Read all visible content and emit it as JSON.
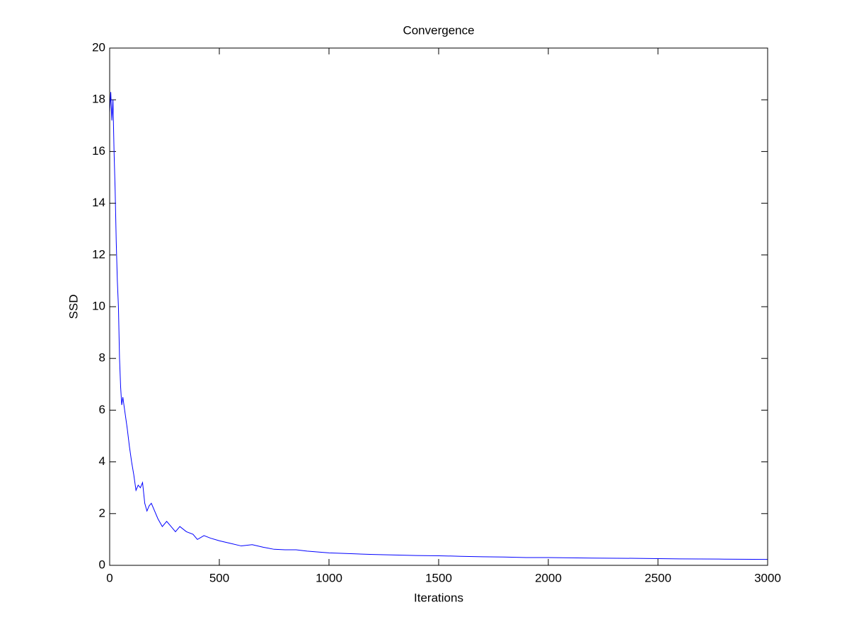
{
  "chart_data": {
    "type": "line",
    "title": "Convergence",
    "xlabel": "Iterations",
    "ylabel": "SSD",
    "x": [
      0,
      5,
      10,
      15,
      20,
      25,
      30,
      35,
      40,
      45,
      50,
      55,
      60,
      70,
      80,
      90,
      100,
      110,
      120,
      130,
      140,
      150,
      160,
      170,
      180,
      190,
      200,
      220,
      240,
      260,
      280,
      300,
      320,
      350,
      380,
      400,
      430,
      460,
      500,
      550,
      600,
      650,
      700,
      750,
      800,
      850,
      900,
      1000,
      1100,
      1200,
      1300,
      1400,
      1500,
      1600,
      1700,
      1800,
      1900,
      2000,
      2200,
      2400,
      2600,
      2800,
      3000
    ],
    "series": [
      {
        "name": "SSD",
        "color": "#0000ff",
        "values": [
          17.5,
          18.3,
          17.2,
          18.0,
          16.0,
          14.5,
          12.5,
          11.0,
          10.0,
          8.0,
          6.9,
          6.2,
          6.5,
          5.9,
          5.3,
          4.6,
          4.0,
          3.5,
          2.9,
          3.1,
          3.0,
          3.2,
          2.4,
          2.1,
          2.3,
          2.4,
          2.2,
          1.8,
          1.5,
          1.7,
          1.5,
          1.3,
          1.5,
          1.3,
          1.2,
          1.0,
          1.15,
          1.05,
          0.95,
          0.85,
          0.75,
          0.8,
          0.7,
          0.62,
          0.6,
          0.6,
          0.55,
          0.48,
          0.45,
          0.42,
          0.4,
          0.38,
          0.37,
          0.35,
          0.33,
          0.32,
          0.3,
          0.3,
          0.28,
          0.27,
          0.25,
          0.24,
          0.23
        ]
      }
    ],
    "xlim": [
      0,
      3000
    ],
    "ylim": [
      0,
      20
    ],
    "xticks": [
      0,
      500,
      1000,
      1500,
      2000,
      2500,
      3000
    ],
    "yticks": [
      0,
      2,
      4,
      6,
      8,
      10,
      12,
      14,
      16,
      18,
      20
    ]
  }
}
